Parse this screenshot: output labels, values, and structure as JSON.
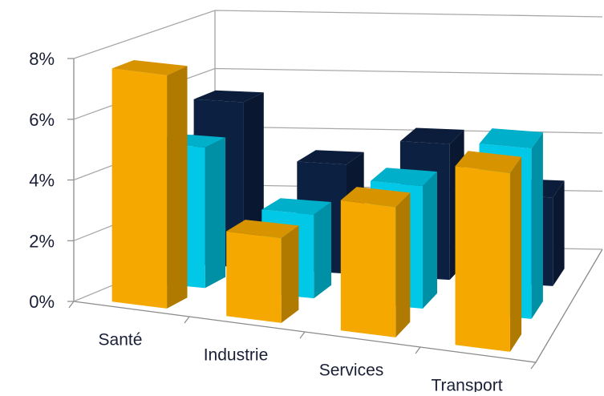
{
  "chart_data": {
    "type": "bar",
    "style": "3d-clustered-depth",
    "categories": [
      "Santé",
      "Industrie",
      "Services",
      "Transport"
    ],
    "yticks": [
      "0%",
      "2%",
      "4%",
      "6%",
      "8%"
    ],
    "ylim": [
      0,
      8
    ],
    "grid": true,
    "legend": "none",
    "series": [
      {
        "values": [
          7.7,
          2.8,
          4.3,
          5.9
        ],
        "color": "#F5A800"
      },
      {
        "values": [
          4.7,
          2.8,
          4.1,
          5.7
        ],
        "color": "#00C8E6"
      },
      {
        "values": [
          5.6,
          3.7,
          4.6,
          3.0
        ],
        "color": "#0C2142"
      }
    ]
  }
}
